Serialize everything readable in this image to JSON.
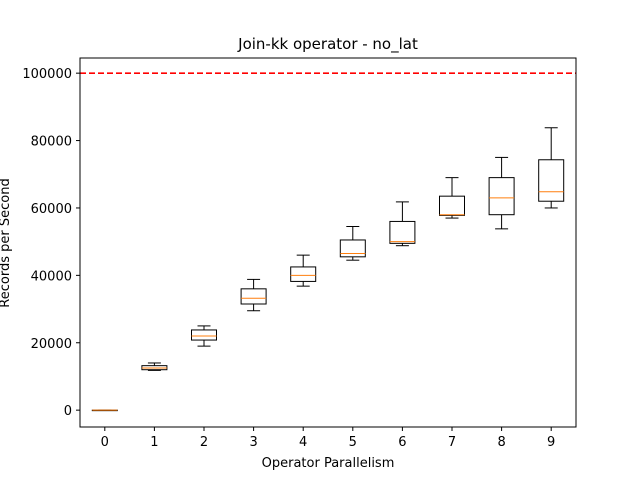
{
  "chart_data": {
    "type": "box",
    "title": "Join-kk operator - no_lat",
    "xlabel": "Operator Parallelism",
    "ylabel": "Records per Second",
    "categories": [
      "0",
      "1",
      "2",
      "3",
      "4",
      "5",
      "6",
      "7",
      "8",
      "9"
    ],
    "ylim": [
      -5000,
      104500
    ],
    "yticks": [
      0,
      20000,
      40000,
      60000,
      80000,
      100000
    ],
    "ytick_labels": [
      "0",
      "20000",
      "40000",
      "60000",
      "80000",
      "100000"
    ],
    "grid": false,
    "reference_line": {
      "value": 100000,
      "style": "dashed",
      "color": "#ff0000"
    },
    "box_color": "#000000",
    "median_color": "#ff7f0e",
    "boxes": [
      {
        "category": "0",
        "whislo": 0,
        "q1": 0,
        "med": 0,
        "q3": 0,
        "whishi": 0
      },
      {
        "category": "1",
        "whislo": 11800,
        "q1": 12000,
        "med": 12500,
        "q3": 13200,
        "whishi": 14000
      },
      {
        "category": "2",
        "whislo": 19000,
        "q1": 20800,
        "med": 22000,
        "q3": 23800,
        "whishi": 25000
      },
      {
        "category": "3",
        "whislo": 29500,
        "q1": 31500,
        "med": 33200,
        "q3": 36000,
        "whishi": 38800
      },
      {
        "category": "4",
        "whislo": 36800,
        "q1": 38200,
        "med": 40000,
        "q3": 42500,
        "whishi": 46000
      },
      {
        "category": "5",
        "whislo": 44500,
        "q1": 45500,
        "med": 46500,
        "q3": 50500,
        "whishi": 54500
      },
      {
        "category": "6",
        "whislo": 48800,
        "q1": 49500,
        "med": 50000,
        "q3": 56000,
        "whishi": 61800
      },
      {
        "category": "7",
        "whislo": 57000,
        "q1": 57800,
        "med": 58000,
        "q3": 63500,
        "whishi": 69000
      },
      {
        "category": "8",
        "whislo": 53800,
        "q1": 58000,
        "med": 63000,
        "q3": 69000,
        "whishi": 75000
      },
      {
        "category": "9",
        "whislo": 60000,
        "q1": 62000,
        "med": 64800,
        "q3": 74300,
        "whishi": 83800
      }
    ]
  }
}
